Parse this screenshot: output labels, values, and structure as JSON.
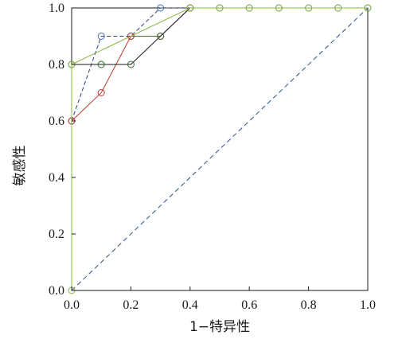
{
  "chart_data": {
    "type": "line",
    "xlabel": "1−特异性",
    "ylabel": "敏感性",
    "xlim": [
      0,
      1
    ],
    "ylim": [
      0,
      1
    ],
    "x_ticks": [
      "0.0",
      "0.2",
      "0.4",
      "0.6",
      "0.8",
      "1.0"
    ],
    "y_ticks": [
      "0.0",
      "0.2",
      "0.4",
      "0.6",
      "0.8",
      "1.0"
    ],
    "grid": false,
    "legend": "none",
    "reference_line": {
      "x": [
        0,
        1
      ],
      "y": [
        0,
        1
      ],
      "color": "#2b4f8a",
      "style": "dashed"
    },
    "series": [
      {
        "color": "#2f3f8f",
        "marker_color": "#3a6fb0",
        "style": "dashed",
        "x": [
          0,
          0.1,
          0.2,
          0.3,
          0.4,
          0.5,
          0.6,
          0.7,
          0.8,
          0.9,
          1.0
        ],
        "y": [
          0.6,
          0.9,
          0.9,
          1.0,
          1.0,
          1.0,
          1.0,
          1.0,
          1.0,
          1.0,
          1.0
        ]
      },
      {
        "color": "#c0392b",
        "marker_color": "#c0392b",
        "style": "solid",
        "x": [
          0,
          0.1,
          0.2,
          0.3,
          0.4
        ],
        "y": [
          0.6,
          0.7,
          0.9,
          0.9,
          1.0
        ]
      },
      {
        "color": "#1a1a1a",
        "marker_color": "#2f6b2f",
        "style": "solid",
        "x": [
          0,
          0.1,
          0.2,
          0.3,
          0.4
        ],
        "y": [
          0.8,
          0.8,
          0.8,
          0.9,
          1.0
        ]
      },
      {
        "color": "#8ab43c",
        "marker_color": "#8ab43c",
        "style": "solid",
        "x": [
          0,
          0,
          0.4,
          0.5,
          0.6,
          0.7,
          0.8,
          0.9,
          1.0
        ],
        "y": [
          0,
          0.8,
          1.0,
          1.0,
          1.0,
          1.0,
          1.0,
          1.0,
          1.0
        ]
      }
    ]
  }
}
